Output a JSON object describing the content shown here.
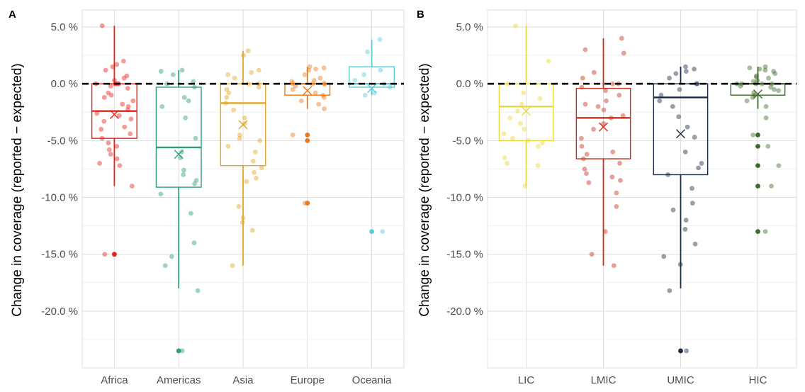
{
  "panels": [
    {
      "tag": "A"
    },
    {
      "tag": "B"
    }
  ],
  "chart_data": [
    {
      "type": "box",
      "panel": "A",
      "ylabel": "Change in coverage (reported − expected)",
      "xlabel": "",
      "ylim": [
        -25.0,
        6.5
      ],
      "yticks": [
        5,
        0,
        -5,
        -10,
        -15,
        -20
      ],
      "ytick_labels": [
        "5.0 %",
        "0.0 %",
        "-5.0 %",
        "-10.0 %",
        "-15.0 %",
        "-20.0 %"
      ],
      "reference_line": 0,
      "grid": true,
      "categories": [
        "Africa",
        "Americas",
        "Asia",
        "Europe",
        "Oceania"
      ],
      "colors": [
        "#e8231a",
        "#2e9d7c",
        "#e0a526",
        "#e97b1c",
        "#5ccbd6"
      ],
      "boxes": [
        {
          "q1": -4.8,
          "median": -2.4,
          "q3": 0.0,
          "lower": -9.0,
          "upper": 5.1,
          "mean": -2.7
        },
        {
          "q1": -9.1,
          "median": -5.6,
          "q3": -0.3,
          "lower": -18.0,
          "upper": 1.2,
          "mean": -6.2
        },
        {
          "q1": -7.2,
          "median": -1.7,
          "q3": 0.0,
          "lower": -16.0,
          "upper": 2.9,
          "mean": -3.6
        },
        {
          "q1": -1.0,
          "median": 0.0,
          "q3": 0.0,
          "lower": -2.2,
          "upper": 1.5,
          "mean": -0.6
        },
        {
          "q1": -0.3,
          "median": 0.0,
          "q3": 1.5,
          "lower": -1.0,
          "upper": 3.9,
          "mean": -0.4
        }
      ],
      "outliers": [
        [
          -15.0
        ],
        [
          -23.5
        ],
        [],
        [
          -4.5,
          -5.0,
          -10.5
        ],
        [
          -13.0
        ]
      ],
      "points": [
        [
          5.1,
          2.0,
          1.7,
          1.5,
          1.2,
          0.7,
          0.5,
          0.3,
          0.0,
          0.0,
          0.0,
          0.0,
          0.0,
          -0.2,
          -0.4,
          -0.8,
          -1.0,
          -1.2,
          -1.5,
          -1.8,
          -2.0,
          -2.3,
          -2.6,
          -2.8,
          -3.1,
          -3.3,
          -3.8,
          -4.0,
          -4.4,
          -4.8,
          -5.2,
          -5.5,
          -5.8,
          -6.2,
          -6.6,
          -7.0,
          -7.2,
          -9.0,
          -15.0
        ],
        [
          1.2,
          1.1,
          0.8,
          0.2,
          0.0,
          -0.3,
          -1.2,
          -1.5,
          -2.0,
          -3.0,
          -4.8,
          -6.0,
          -6.5,
          -7.6,
          -8.0,
          -8.5,
          -8.8,
          -9.7,
          -11.4,
          -14.0,
          -15.2,
          -16.0,
          -18.2,
          -23.5
        ],
        [
          2.9,
          2.5,
          1.2,
          1.0,
          0.8,
          0.5,
          0.0,
          0.0,
          -0.3,
          -0.5,
          -0.8,
          -1.2,
          -1.7,
          -2.3,
          -3.0,
          -3.5,
          -4.5,
          -4.8,
          -5.0,
          -5.5,
          -6.0,
          -6.8,
          -7.4,
          -7.8,
          -8.3,
          -8.6,
          -10.8,
          -11.8,
          -12.2,
          -12.9,
          -16.0
        ],
        [
          1.5,
          1.4,
          1.3,
          1.2,
          0.8,
          0.5,
          0.3,
          0.2,
          0.0,
          0.0,
          0.0,
          0.0,
          -0.2,
          -0.5,
          -0.8,
          -1.0,
          -1.2,
          -1.5,
          -1.8,
          -2.2,
          -4.5,
          -5.0,
          -10.5
        ],
        [
          3.9,
          2.8,
          1.2,
          0.8,
          0.3,
          0.0,
          -0.3,
          -0.8,
          -1.0,
          -13.0
        ]
      ]
    },
    {
      "type": "box",
      "panel": "B",
      "ylabel": "Change in coverage (reported − expected)",
      "xlabel": "",
      "ylim": [
        -25.0,
        6.5
      ],
      "yticks": [
        5,
        0,
        -5,
        -10,
        -15,
        -20
      ],
      "ytick_labels": [
        "5.0 %",
        "0.0 %",
        "-5.0 %",
        "-10.0 %",
        "-15.0 %",
        "-20.0 %"
      ],
      "reference_line": 0,
      "grid": true,
      "categories": [
        "LIC",
        "LMIC",
        "UMIC",
        "HIC"
      ],
      "colors": [
        "#e8d83a",
        "#c8301c",
        "#1b2a44",
        "#3d6b2b"
      ],
      "boxes": [
        {
          "q1": -5.0,
          "median": -2.0,
          "q3": 0.0,
          "lower": -9.0,
          "upper": 5.1,
          "mean": -2.4
        },
        {
          "q1": -6.6,
          "median": -3.0,
          "q3": -0.4,
          "lower": -16.0,
          "upper": 4.0,
          "mean": -3.8
        },
        {
          "q1": -8.0,
          "median": -1.2,
          "q3": 0.0,
          "lower": -18.0,
          "upper": 1.5,
          "mean": -4.4
        },
        {
          "q1": -1.0,
          "median": 0.0,
          "q3": 0.0,
          "lower": -2.2,
          "upper": 1.5,
          "mean": -0.9
        }
      ],
      "outliers": [
        [],
        [],
        [
          -23.5
        ],
        [
          -4.5,
          -5.5,
          -7.2,
          -9.0,
          -13.0
        ]
      ],
      "points": [
        [
          5.1,
          2.0,
          0.0,
          -0.8,
          -1.3,
          -1.8,
          -2.4,
          -3.0,
          -3.5,
          -4.0,
          -4.4,
          -4.8,
          -5.0,
          -5.2,
          -5.5,
          -6.5,
          -7.0,
          -7.2,
          -9.0
        ],
        [
          4.0,
          3.0,
          2.7,
          1.0,
          0.5,
          0.0,
          0.0,
          -0.3,
          -0.6,
          -1.0,
          -1.5,
          -1.8,
          -2.0,
          -2.3,
          -2.8,
          -3.0,
          -3.5,
          -4.0,
          -4.8,
          -5.5,
          -6.0,
          -6.2,
          -6.6,
          -7.0,
          -7.5,
          -7.9,
          -8.2,
          -8.5,
          -8.7,
          -9.6,
          -10.8,
          -13.0,
          -15.0,
          -16.0
        ],
        [
          1.5,
          1.3,
          1.1,
          0.9,
          0.5,
          0.0,
          0.0,
          -0.5,
          -1.0,
          -1.5,
          -2.0,
          -2.9,
          -3.8,
          -4.7,
          -6.0,
          -7.0,
          -7.4,
          -8.0,
          -9.2,
          -10.5,
          -11.1,
          -12.0,
          -12.8,
          -14.1,
          -15.2,
          -15.9,
          -18.2,
          -23.5
        ],
        [
          1.5,
          1.4,
          1.3,
          1.2,
          1.1,
          0.9,
          0.7,
          0.6,
          0.5,
          0.3,
          0.2,
          0.0,
          0.0,
          0.0,
          0.0,
          0.0,
          -0.2,
          -0.3,
          -0.5,
          -0.6,
          -0.8,
          -1.0,
          -1.2,
          -1.5,
          -2.0,
          -3.0,
          -4.5,
          -5.5,
          -7.2,
          -9.0,
          -13.0
        ]
      ]
    }
  ]
}
